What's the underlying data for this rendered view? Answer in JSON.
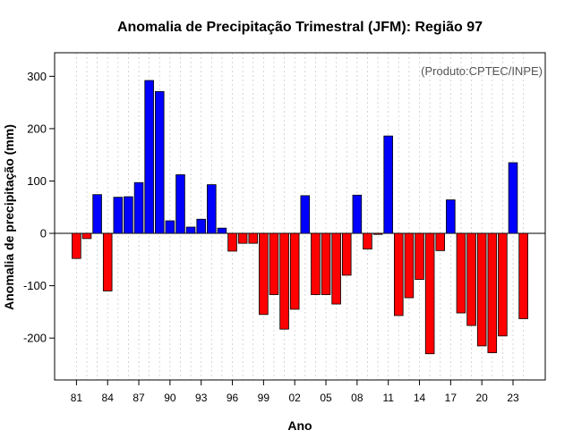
{
  "chart_data": {
    "type": "bar",
    "title": "Anomalia de Precipitação Trimestral (JFM): Região 97",
    "xlabel": "Ano",
    "ylabel": "Anomalia de precipitação (mm)",
    "credit": "(Produto:CPTEC/INPE)",
    "ylim": [
      -280,
      345
    ],
    "yticks": [
      -200,
      -100,
      0,
      100,
      200,
      300
    ],
    "xtick_labels": [
      "81",
      "84",
      "87",
      "90",
      "93",
      "96",
      "99",
      "02",
      "05",
      "08",
      "11",
      "14",
      "17",
      "20",
      "23"
    ],
    "categories": [
      "1981",
      "1982",
      "1983",
      "1984",
      "1985",
      "1986",
      "1987",
      "1988",
      "1989",
      "1990",
      "1991",
      "1992",
      "1993",
      "1994",
      "1995",
      "1996",
      "1997",
      "1998",
      "1999",
      "2000",
      "2001",
      "2002",
      "2003",
      "2004",
      "2005",
      "2006",
      "2007",
      "2008",
      "2009",
      "2010",
      "2011",
      "2012",
      "2013",
      "2014",
      "2015",
      "2016",
      "2017",
      "2018",
      "2019",
      "2020",
      "2021",
      "2022",
      "2023",
      "2024"
    ],
    "values": [
      -48,
      -10,
      74,
      -110,
      69,
      70,
      97,
      292,
      271,
      24,
      112,
      12,
      27,
      93,
      10,
      -34,
      -19,
      -19,
      -155,
      -117,
      -183,
      -145,
      72,
      -117,
      -117,
      -135,
      -80,
      73,
      -30,
      -2,
      186,
      -157,
      -123,
      -88,
      -230,
      -33,
      64,
      -152,
      -176,
      -215,
      -228,
      -196,
      135,
      -163
    ],
    "positive_color": "#0000ff",
    "negative_color": "#ff0000",
    "grid": "vertical dotted"
  }
}
